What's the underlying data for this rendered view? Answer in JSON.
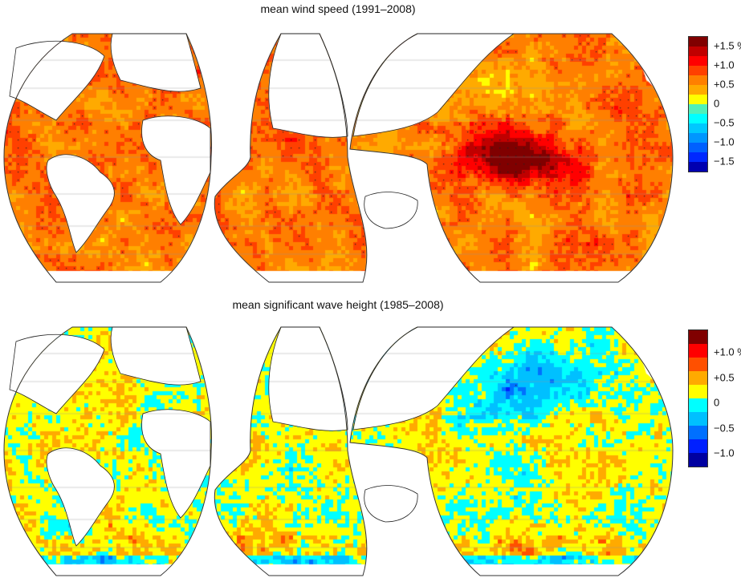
{
  "chart_data": [
    {
      "type": "heatmap",
      "title": "mean wind speed (1991–2008)",
      "unit": "%",
      "colorbar": {
        "labels": [
          "+1.5 %",
          "+1.0",
          "+0.5",
          "0",
          "−0.5",
          "−1.0",
          "−1.5"
        ],
        "label_values": [
          1.5,
          1.0,
          0.5,
          0,
          -0.5,
          -1.0,
          -1.5
        ],
        "vmin": -1.75,
        "vmax": 1.75,
        "colors": [
          "#800000",
          "#c00000",
          "#ff0000",
          "#ff4000",
          "#ff7f00",
          "#ffaa00",
          "#ffff00",
          "#50f0b8",
          "#00ffff",
          "#00c8ff",
          "#0096ff",
          "#0060ff",
          "#0028ff",
          "#0000b0"
        ]
      },
      "pattern": "mostly positive trends (+0.25 to +1.0 %), strongest (>+1.5 %) in the central tropical Pacific"
    },
    {
      "type": "heatmap",
      "title": "mean significant wave height (1985–2008)",
      "unit": "%",
      "colorbar": {
        "labels": [
          "+1.0 %",
          "+0.5",
          "0",
          "−0.5",
          "−1.0"
        ],
        "label_values": [
          1.0,
          0.5,
          0,
          -0.5,
          -1.0
        ],
        "vmin": -1.25,
        "vmax": 1.45,
        "colors": [
          "#800000",
          "#ff0000",
          "#ff5000",
          "#ffaa00",
          "#ffff00",
          "#00ffff",
          "#00c0ff",
          "#0070ff",
          "#0020ff",
          "#0000a0"
        ]
      },
      "pattern": "mixed small trends (-0.5 to +0.5 %), negative in the North Pacific"
    }
  ]
}
